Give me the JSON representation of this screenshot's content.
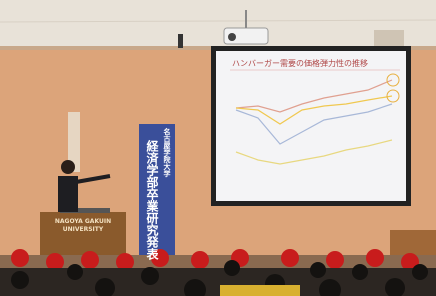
{
  "screen": {
    "title": "ハンバーガー需要の価格弾力性の推移"
  },
  "podium": {
    "line1": "NAGOYA GAKUIN",
    "line2": "UNIVERSITY"
  },
  "banner": {
    "subtitle": "名古屋学院大学",
    "title": "経済学部卒業研究発表"
  }
}
